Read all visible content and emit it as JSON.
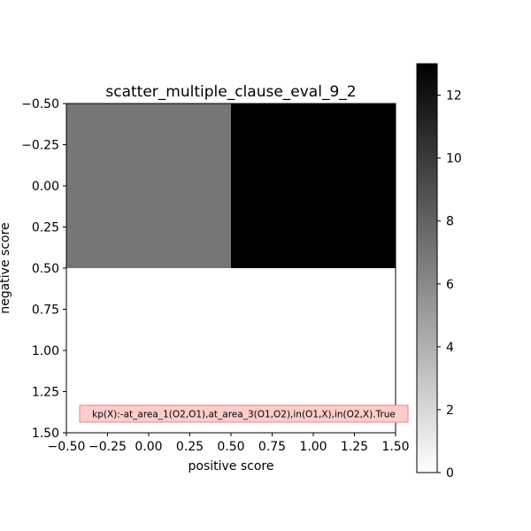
{
  "chart_data": {
    "type": "heatmap",
    "title": "scatter_multiple_clause_eval_9_2",
    "xlabel": "positive score",
    "ylabel": "negative score",
    "xlim": [
      -0.5,
      1.5
    ],
    "ylim": [
      1.5,
      -0.5
    ],
    "x_ticks": [
      "−0.50",
      "−0.25",
      "0.00",
      "0.25",
      "0.50",
      "0.75",
      "1.00",
      "1.25",
      "1.50"
    ],
    "y_ticks": [
      "−0.50",
      "−0.25",
      "0.00",
      "0.25",
      "0.50",
      "0.75",
      "1.00",
      "1.25",
      "1.50"
    ],
    "grid": false,
    "colormap": "gray_r",
    "value_range": [
      0,
      13
    ],
    "cells": [
      {
        "row": 0,
        "col": 0,
        "value": 7
      },
      {
        "row": 0,
        "col": 1,
        "value": 13
      },
      {
        "row": 1,
        "col": 0,
        "value": 0
      },
      {
        "row": 1,
        "col": 1,
        "value": 0
      }
    ],
    "colorbar": {
      "ticks": [
        "0",
        "2",
        "4",
        "6",
        "8",
        "10",
        "12"
      ],
      "tick_values": [
        0,
        2,
        4,
        6,
        8,
        10,
        12
      ]
    },
    "annotation": {
      "text": "kp(X):-at_area_1(O2,O1),at_area_3(O1,O2),in(O1,X),in(O2,X).True",
      "background": "#ffcccc",
      "border": "#f08080"
    }
  }
}
